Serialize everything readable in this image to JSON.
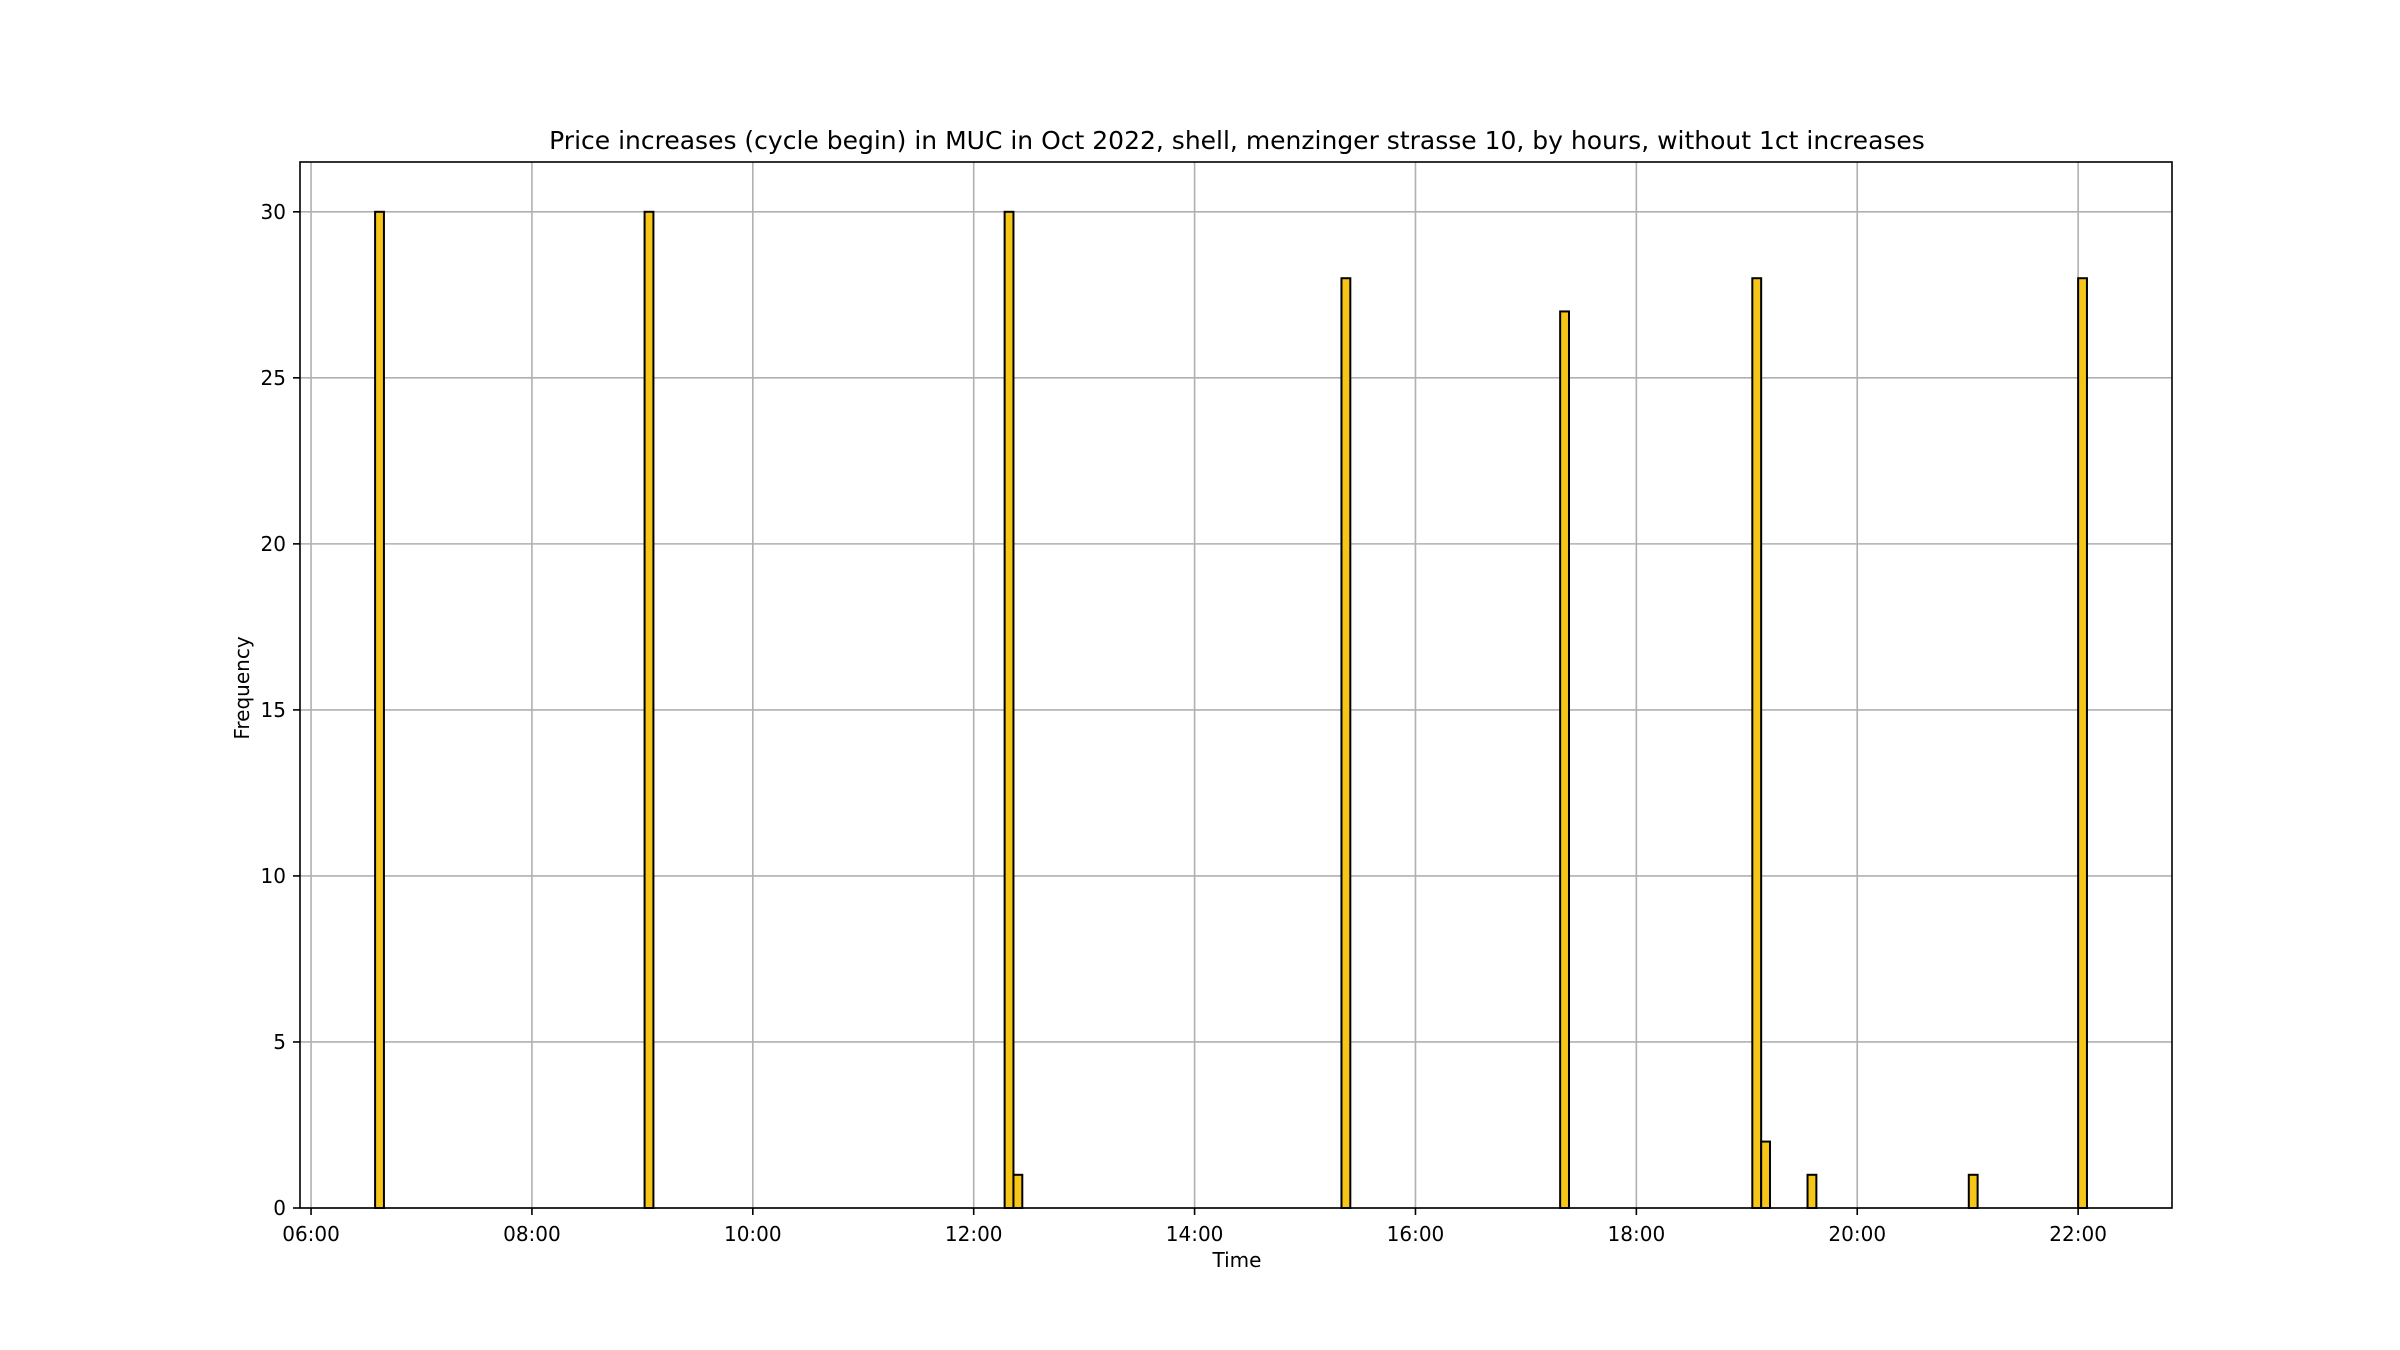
{
  "chart_data": {
    "type": "bar",
    "title": "Price increases (cycle begin) in MUC in Oct 2022, shell, menzinger strasse 10, by hours, without 1ct increases",
    "xlabel": "Time",
    "ylabel": "Frequency",
    "x_unit": "hours",
    "xlim": [
      5.9,
      22.85
    ],
    "ylim": [
      0,
      31.5
    ],
    "x_ticks": [
      {
        "value": 6,
        "label": "06:00"
      },
      {
        "value": 8,
        "label": "08:00"
      },
      {
        "value": 10,
        "label": "10:00"
      },
      {
        "value": 12,
        "label": "12:00"
      },
      {
        "value": 14,
        "label": "14:00"
      },
      {
        "value": 16,
        "label": "16:00"
      },
      {
        "value": 18,
        "label": "18:00"
      },
      {
        "value": 20,
        "label": "20:00"
      },
      {
        "value": 22,
        "label": "22:00"
      }
    ],
    "y_ticks": [
      {
        "value": 0,
        "label": "0"
      },
      {
        "value": 5,
        "label": "5"
      },
      {
        "value": 10,
        "label": "10"
      },
      {
        "value": 15,
        "label": "15"
      },
      {
        "value": 20,
        "label": "20"
      },
      {
        "value": 25,
        "label": "25"
      },
      {
        "value": 30,
        "label": "30"
      }
    ],
    "grid": true,
    "bar_color": "#f5c518",
    "edge_color": "#000000",
    "bins": [
      {
        "x0": 6.58,
        "x1": 6.66,
        "value": 30
      },
      {
        "x0": 9.02,
        "x1": 9.1,
        "value": 30
      },
      {
        "x0": 12.28,
        "x1": 12.36,
        "value": 30
      },
      {
        "x0": 12.36,
        "x1": 12.44,
        "value": 1
      },
      {
        "x0": 15.33,
        "x1": 15.41,
        "value": 28
      },
      {
        "x0": 17.31,
        "x1": 17.39,
        "value": 27
      },
      {
        "x0": 19.05,
        "x1": 19.13,
        "value": 28
      },
      {
        "x0": 19.13,
        "x1": 19.21,
        "value": 2
      },
      {
        "x0": 19.55,
        "x1": 19.63,
        "value": 1
      },
      {
        "x0": 21.01,
        "x1": 21.09,
        "value": 1
      },
      {
        "x0": 22.0,
        "x1": 22.08,
        "value": 28
      }
    ]
  }
}
